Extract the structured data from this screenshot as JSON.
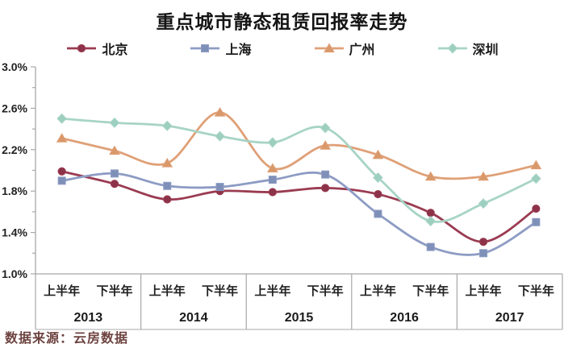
{
  "title": "重点城市静态租赁回报率走势",
  "source": "数据来源：云房数据",
  "chart_data": {
    "type": "line",
    "title": "重点城市静态租赁回报率走势",
    "categories": [
      "2013上半年",
      "2013下半年",
      "2014上半年",
      "2014下半年",
      "2015上半年",
      "2015下半年",
      "2016上半年",
      "2016下半年",
      "2017上半年",
      "2017下半年"
    ],
    "x_half_labels": [
      "上半年",
      "下半年"
    ],
    "years": [
      "2013",
      "2014",
      "2015",
      "2016",
      "2017"
    ],
    "y_ticks": [
      "3.0%",
      "2.6%",
      "2.2%",
      "1.8%",
      "1.4%",
      "1.0%"
    ],
    "y_tick_values": [
      3.0,
      2.6,
      2.2,
      1.8,
      1.4,
      1.0
    ],
    "ylim": [
      1.0,
      3.0
    ],
    "y_minor_step": 0.2,
    "unit": "%",
    "grid": false,
    "legend_position": "top",
    "smooth_lines": true,
    "axis_line_color": "#a8a8a8",
    "series": [
      {
        "id": "beijing",
        "name": "北京",
        "marker": "circle",
        "color": "#9a3b51",
        "marker_color": "#8d3349",
        "values": [
          1.99,
          1.87,
          1.72,
          1.8,
          1.79,
          1.83,
          1.77,
          1.59,
          1.31,
          1.63
        ]
      },
      {
        "id": "shanghai",
        "name": "上海",
        "marker": "square",
        "color": "#8d9cc4",
        "marker_color": "#7e8fb8",
        "values": [
          1.9,
          1.97,
          1.85,
          1.84,
          1.91,
          1.96,
          1.58,
          1.26,
          1.2,
          1.5
        ]
      },
      {
        "id": "guangzhou",
        "name": "广州",
        "marker": "triangle",
        "color": "#dfa077",
        "marker_color": "#d9986a",
        "values": [
          2.31,
          2.19,
          2.07,
          2.56,
          2.02,
          2.24,
          2.15,
          1.94,
          1.94,
          2.05
        ]
      },
      {
        "id": "shenzhen",
        "name": "深圳",
        "marker": "diamond",
        "color": "#a7d4c5",
        "marker_color": "#9dcfc0",
        "values": [
          2.5,
          2.46,
          2.43,
          2.33,
          2.27,
          2.41,
          1.93,
          1.51,
          1.68,
          1.92
        ]
      }
    ]
  }
}
